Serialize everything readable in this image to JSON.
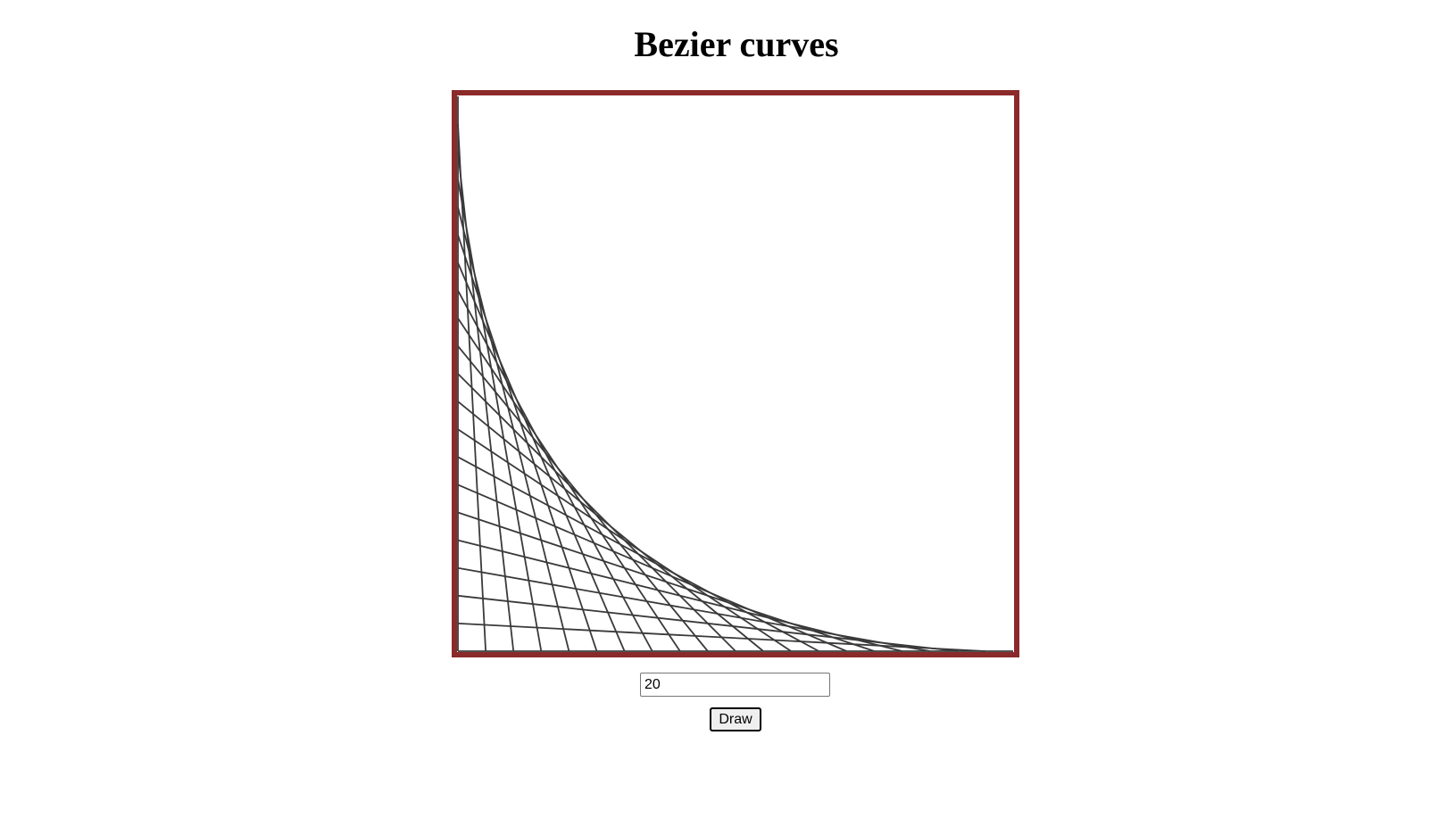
{
  "page": {
    "title": "Bezier curves"
  },
  "controls": {
    "count_value": "20",
    "draw_label": "Draw"
  },
  "colors": {
    "frame_border": "#8b2a2a",
    "line_stroke": "#3a3a3a"
  }
}
